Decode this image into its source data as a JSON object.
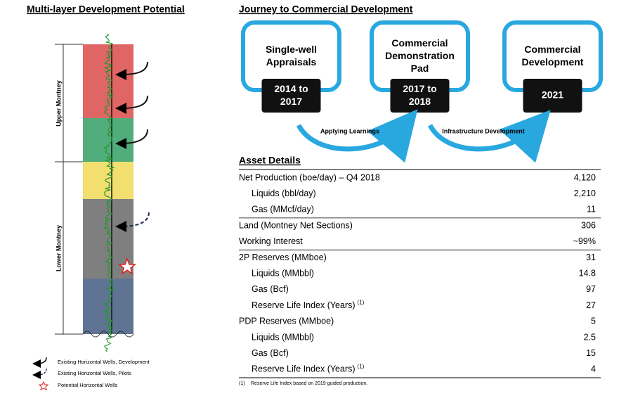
{
  "left_panel": {
    "title": "Multi-layer Development Potential",
    "zones": [
      "Upper Montney",
      "Lower Montney"
    ],
    "legend": [
      "Existing Horizontal Wells, Development",
      "Existing Horizontal Wells, Pilots",
      "Potential Horizontal Wells"
    ]
  },
  "journey": {
    "title": "Journey to Commercial Development",
    "stages": [
      {
        "label": "Single-well Appraisals",
        "years": "2014 to 2017"
      },
      {
        "label": "Commercial Demonstration Pad",
        "years": "2017 to 2018"
      },
      {
        "label": "Commercial Development",
        "years": "2021"
      }
    ],
    "transitions": [
      "Applying Learnings",
      "Infrastructure Development"
    ]
  },
  "asset_details": {
    "title": "Asset Details",
    "rows": [
      {
        "label": "Net Production (boe/day) – Q4 2018",
        "value": "4,120"
      },
      {
        "label": "Liquids (bbl/day)",
        "value": "2,210"
      },
      {
        "label": "Gas (MMcf/day)",
        "value": "11"
      },
      {
        "label": "Land (Montney Net Sections)",
        "value": "306"
      },
      {
        "label": "Working Interest",
        "value": "~99%"
      },
      {
        "label": "2P Reserves (MMboe)",
        "value": "31"
      },
      {
        "label": "Liquids (MMbbl)",
        "value": "14.8"
      },
      {
        "label": "Gas (Bcf)",
        "value": "97"
      },
      {
        "label": "Reserve Life Index (Years)",
        "note": "(1)",
        "value": "27"
      },
      {
        "label": "PDP Reserves (MMboe)",
        "value": "5"
      },
      {
        "label": "Liquids (MMbbl)",
        "value": "2.5"
      },
      {
        "label": "Gas (Bcf)",
        "value": "15"
      },
      {
        "label": "Reserve Life Index (Years)",
        "note": "(1)",
        "value": "4"
      }
    ],
    "footnote": {
      "marker": "(1)",
      "text": "Reserve Life Index based on 2019 guided production."
    }
  }
}
